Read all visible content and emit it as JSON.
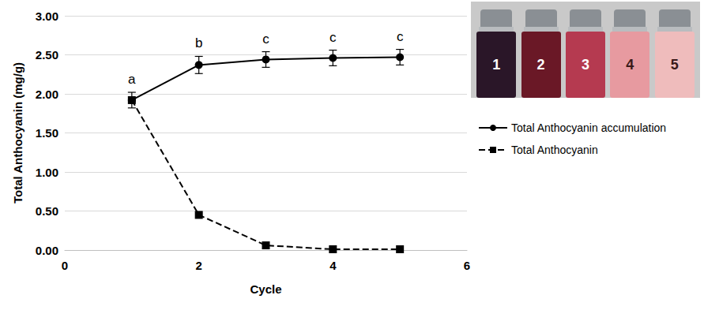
{
  "chart_data": {
    "type": "line",
    "x_label": "Cycle",
    "y_label": "Total Anthocyanin (mg/g)",
    "x": [
      1,
      2,
      3,
      4,
      5
    ],
    "xlim": [
      0,
      6
    ],
    "xticks": [
      0,
      2,
      4,
      6
    ],
    "ylim": [
      0,
      3
    ],
    "yticks": [
      {
        "value": 0,
        "label": "0.00"
      },
      {
        "value": 0.5,
        "label": "0.50"
      },
      {
        "value": 1,
        "label": "1.00"
      },
      {
        "value": 1.5,
        "label": "1.50"
      },
      {
        "value": 2,
        "label": "2.00"
      },
      {
        "value": 2.5,
        "label": "2.50"
      },
      {
        "value": 3,
        "label": "3.00"
      }
    ],
    "grid": true,
    "legend": "right",
    "series": [
      {
        "name": "Total Anthocyanin accumulation",
        "color": "#000000",
        "marker": "circle",
        "line_style": "solid",
        "values": [
          1.92,
          2.37,
          2.44,
          2.46,
          2.47
        ],
        "errors": [
          0.1,
          0.11,
          0.1,
          0.1,
          0.1
        ],
        "letters": [
          "a",
          "b",
          "c",
          "c",
          "c"
        ]
      },
      {
        "name": "Total Anthocyanin",
        "color": "#000000",
        "marker": "square",
        "line_style": "dashed",
        "values": [
          1.92,
          0.45,
          0.06,
          0.01,
          0.01
        ]
      }
    ],
    "inset": [
      {
        "label": "1",
        "color": "#2a1628"
      },
      {
        "label": "2",
        "color": "#6a1826"
      },
      {
        "label": "3",
        "color": "#b53a50"
      },
      {
        "label": "4",
        "color": "#e79aa0"
      },
      {
        "label": "5",
        "color": "#efbcbc"
      }
    ]
  }
}
